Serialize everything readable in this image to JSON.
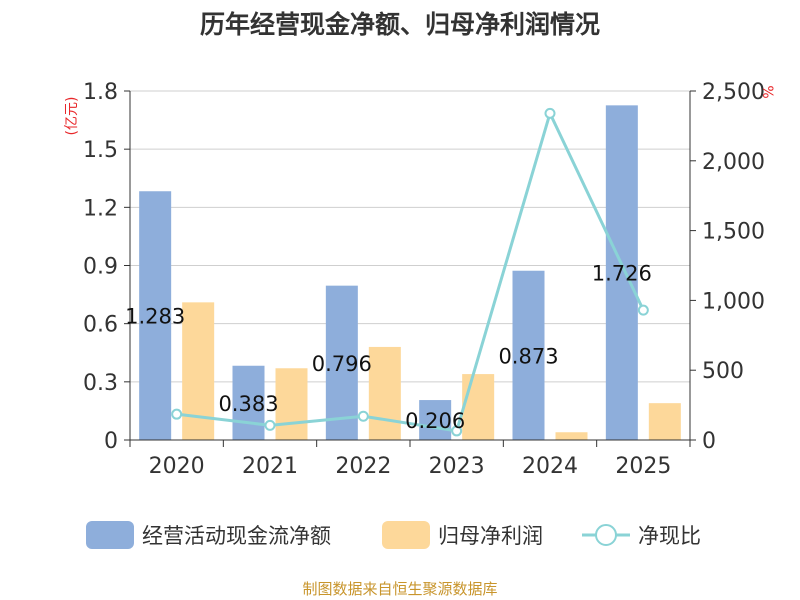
{
  "chart_data": {
    "type": "bar",
    "title": "历年经营现金净额、归母净利润情况",
    "categories": [
      "2020",
      "2021",
      "2022",
      "2023",
      "2024",
      "2025"
    ],
    "ylabel": "(亿元)",
    "ylabel_right": "%",
    "ylim": [
      0,
      1.8
    ],
    "y_ticks": [
      "0",
      "0.3",
      "0.6",
      "0.9",
      "1.2",
      "1.5",
      "1.8"
    ],
    "ylim_right": [
      0,
      2500
    ],
    "y2_ticks": [
      "0",
      "500",
      "1,000",
      "1,500",
      "2,000",
      "2,500"
    ],
    "grid": true,
    "legend_position": "bottom",
    "series": [
      {
        "name": "经营活动现金流净额",
        "type": "bar",
        "axis": "left",
        "color": "#8eaedb",
        "values": [
          1.283,
          0.383,
          0.796,
          0.206,
          0.873,
          1.726
        ],
        "labels": [
          "1.283",
          "0.383",
          "0.796",
          "0.206",
          "0.873",
          "1.726"
        ]
      },
      {
        "name": "归母净利润",
        "type": "bar",
        "axis": "left",
        "color": "#fdd89a",
        "values": [
          0.71,
          0.37,
          0.48,
          0.34,
          0.04,
          0.19
        ]
      },
      {
        "name": "净现比",
        "type": "line",
        "axis": "right",
        "color": "#8ad3d6",
        "values": [
          185,
          105,
          170,
          65,
          2340,
          930
        ]
      }
    ],
    "source": "制图数据来自恒生聚源数据库"
  }
}
